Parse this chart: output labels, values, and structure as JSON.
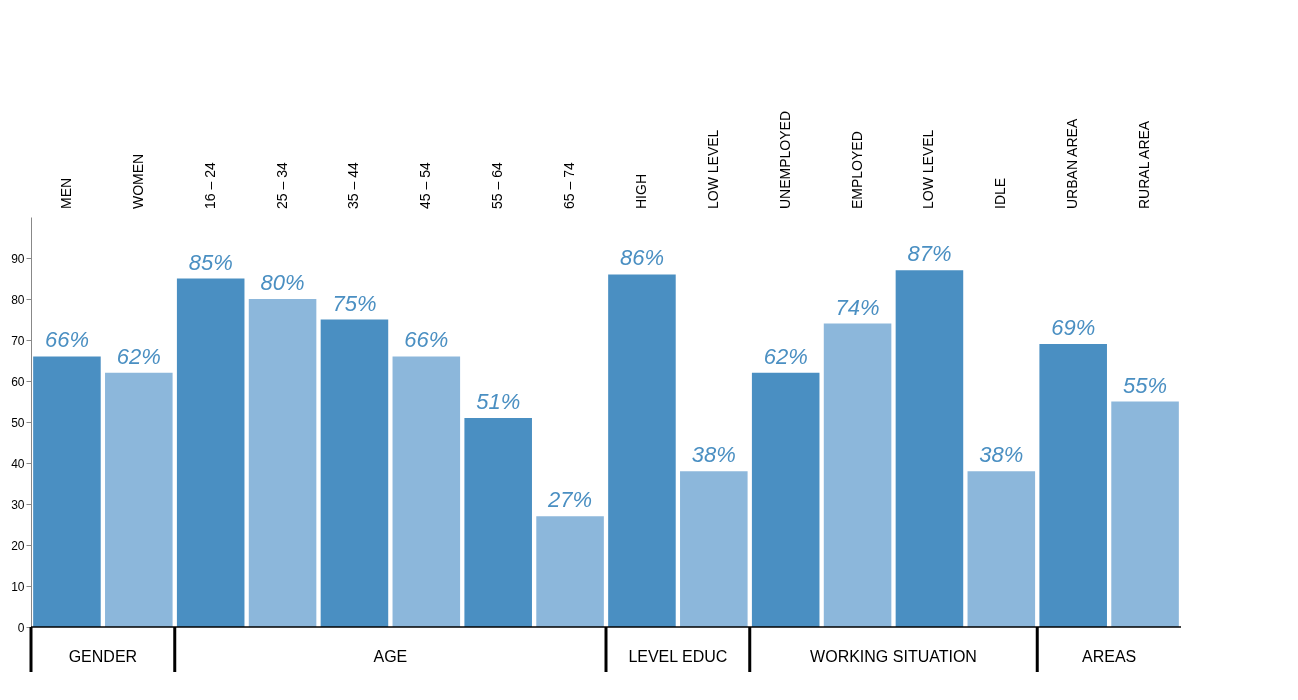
{
  "chart_data": {
    "type": "bar",
    "categories": [
      "MEN",
      "WOMEN",
      "16 – 24",
      "25 – 34",
      "35 – 44",
      "45 – 54",
      "55 – 64",
      "65 – 74",
      "HIGH",
      "LOW LEVEL",
      "UNEMPLOYED",
      "EMPLOYED",
      "LOW LEVEL",
      "IDLE",
      "URBAN AREA",
      "RURAL AREA"
    ],
    "values": [
      66,
      62,
      85,
      80,
      75,
      66,
      51,
      27,
      86,
      38,
      62,
      74,
      87,
      38,
      69,
      55
    ],
    "value_labels": [
      "66%",
      "62%",
      "85%",
      "80%",
      "75%",
      "66%",
      "51%",
      "27%",
      "86%",
      "38%",
      "62%",
      "74%",
      "87%",
      "38%",
      "69%",
      "55%"
    ],
    "colors": [
      "#4a8fc2",
      "#8cb7db",
      "#4a8fc2",
      "#8cb7db",
      "#4a8fc2",
      "#8cb7db",
      "#4a8fc2",
      "#8cb7db",
      "#4a8fc2",
      "#8cb7db",
      "#4a8fc2",
      "#8cb7db",
      "#4a8fc2",
      "#8cb7db",
      "#4a8fc2",
      "#8cb7db"
    ],
    "ylim": [
      0,
      100
    ],
    "yticks": [
      0,
      10,
      20,
      30,
      40,
      50,
      60,
      70,
      80,
      90
    ],
    "annotations": [
      "GENDER",
      "AGE",
      "LEVEL EDUC",
      "WORKING SITUATION",
      "AREAS"
    ]
  }
}
